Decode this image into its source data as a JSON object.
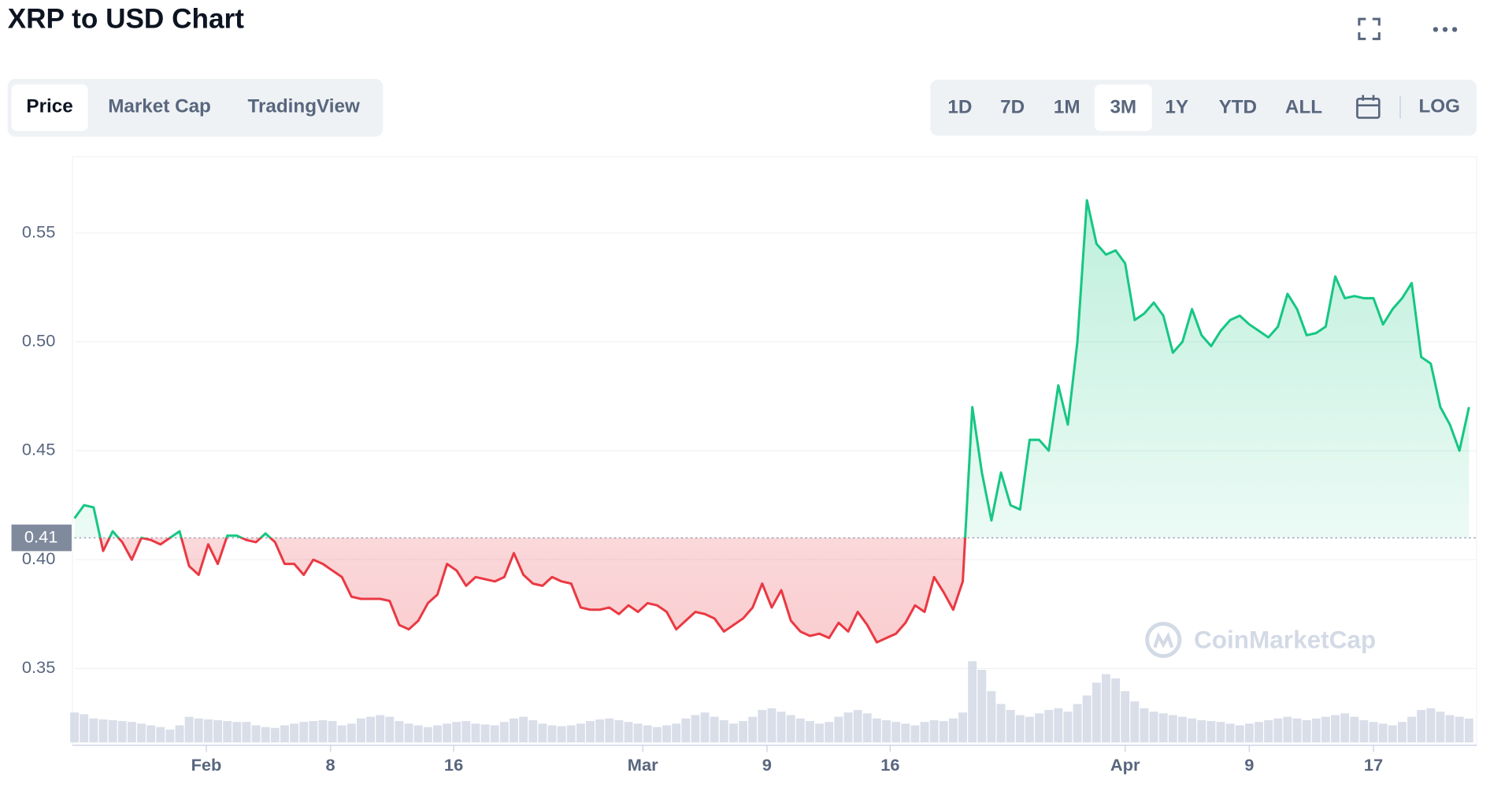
{
  "chart_data": {
    "type": "line",
    "title": "XRP to USD Chart",
    "tabs": [
      "Price",
      "Market Cap",
      "TradingView"
    ],
    "selected_tab": 0,
    "ranges": [
      "1D",
      "7D",
      "1M",
      "3M",
      "1Y",
      "YTD",
      "ALL"
    ],
    "selected_range": 3,
    "scale_button": "LOG",
    "watermark": "CoinMarketCap",
    "baseline": 0.41,
    "up_color": "#16c784",
    "down_color": "#ea3943",
    "volume_color": "#cfd6e4",
    "xlim": [
      0,
      146
    ],
    "ylim": [
      0.32,
      0.585
    ],
    "grid": true,
    "yticks": [
      {
        "value": 0.35,
        "label": "0.35"
      },
      {
        "value": 0.4,
        "label": "0.40"
      },
      {
        "value": 0.45,
        "label": "0.45"
      },
      {
        "value": 0.5,
        "label": "0.50"
      },
      {
        "value": 0.55,
        "label": "0.55"
      }
    ],
    "xticks": [
      {
        "value": 13.8,
        "label": "Feb"
      },
      {
        "value": 26.8,
        "label": "8"
      },
      {
        "value": 39.7,
        "label": "16"
      },
      {
        "value": 59.5,
        "label": "Mar"
      },
      {
        "value": 72.5,
        "label": "9"
      },
      {
        "value": 85.4,
        "label": "16"
      },
      {
        "value": 110,
        "label": "Apr"
      },
      {
        "value": 123,
        "label": "9"
      },
      {
        "value": 136,
        "label": "17"
      }
    ],
    "series": [
      {
        "name": "Price",
        "values": [
          0.419,
          0.425,
          0.424,
          0.404,
          0.413,
          0.408,
          0.4,
          0.41,
          0.409,
          0.407,
          0.41,
          0.413,
          0.397,
          0.393,
          0.407,
          0.398,
          0.411,
          0.411,
          0.409,
          0.408,
          0.412,
          0.408,
          0.398,
          0.398,
          0.393,
          0.4,
          0.398,
          0.395,
          0.392,
          0.383,
          0.382,
          0.382,
          0.382,
          0.381,
          0.37,
          0.368,
          0.372,
          0.38,
          0.384,
          0.398,
          0.395,
          0.388,
          0.392,
          0.391,
          0.39,
          0.392,
          0.403,
          0.393,
          0.389,
          0.388,
          0.392,
          0.39,
          0.389,
          0.378,
          0.377,
          0.377,
          0.378,
          0.375,
          0.379,
          0.376,
          0.38,
          0.379,
          0.376,
          0.368,
          0.372,
          0.376,
          0.375,
          0.373,
          0.367,
          0.37,
          0.373,
          0.378,
          0.389,
          0.378,
          0.386,
          0.372,
          0.367,
          0.365,
          0.366,
          0.364,
          0.371,
          0.367,
          0.376,
          0.37,
          0.362,
          0.364,
          0.366,
          0.371,
          0.379,
          0.376,
          0.392,
          0.385,
          0.377,
          0.39,
          0.47,
          0.44,
          0.418,
          0.44,
          0.425,
          0.423,
          0.455,
          0.455,
          0.45,
          0.48,
          0.462,
          0.5,
          0.565,
          0.545,
          0.54,
          0.542,
          0.536,
          0.51,
          0.513,
          0.518,
          0.512,
          0.495,
          0.5,
          0.515,
          0.503,
          0.498,
          0.505,
          0.51,
          0.512,
          0.508,
          0.505,
          0.502,
          0.507,
          0.522,
          0.515,
          0.503,
          0.504,
          0.507,
          0.53,
          0.52,
          0.521,
          0.52,
          0.52,
          0.508,
          0.515,
          0.52,
          0.527,
          0.493,
          0.49,
          0.47,
          0.462,
          0.45,
          0.47
        ]
      }
    ],
    "volume": [
      35,
      33,
      28,
      27,
      26,
      25,
      24,
      22,
      20,
      18,
      15,
      20,
      30,
      28,
      27,
      26,
      25,
      24,
      24,
      20,
      18,
      17,
      20,
      22,
      24,
      25,
      26,
      25,
      20,
      22,
      28,
      30,
      32,
      30,
      25,
      22,
      20,
      18,
      20,
      22,
      24,
      25,
      22,
      21,
      20,
      24,
      28,
      30,
      26,
      22,
      20,
      19,
      20,
      22,
      25,
      27,
      28,
      26,
      24,
      22,
      20,
      18,
      20,
      22,
      28,
      32,
      35,
      30,
      26,
      22,
      25,
      30,
      38,
      40,
      36,
      32,
      28,
      25,
      22,
      24,
      30,
      35,
      38,
      34,
      28,
      26,
      24,
      22,
      20,
      24,
      26,
      25,
      28,
      35,
      95,
      85,
      60,
      45,
      38,
      32,
      30,
      34,
      38,
      40,
      36,
      45,
      55,
      70,
      80,
      75,
      60,
      48,
      40,
      36,
      34,
      32,
      30,
      28,
      26,
      25,
      24,
      22,
      20,
      22,
      24,
      26,
      28,
      30,
      28,
      26,
      28,
      30,
      32,
      34,
      30,
      26,
      24,
      22,
      20,
      24,
      30,
      38,
      40,
      36,
      32,
      30,
      28
    ]
  }
}
